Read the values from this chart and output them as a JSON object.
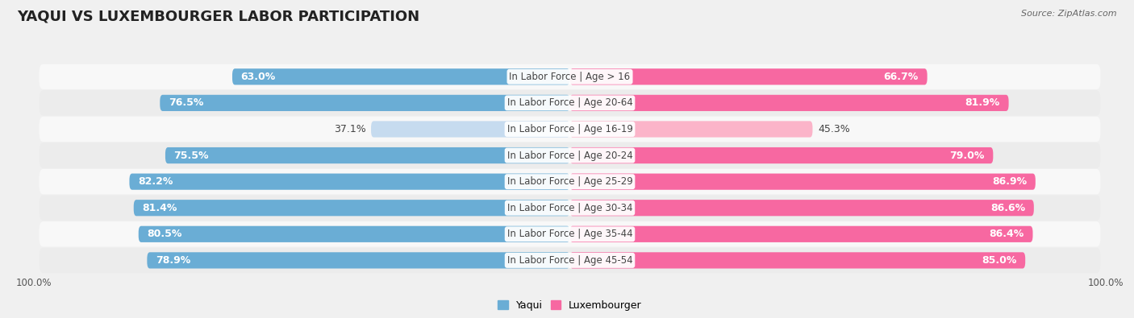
{
  "title": "YAQUI VS LUXEMBOURGER LABOR PARTICIPATION",
  "source": "Source: ZipAtlas.com",
  "categories": [
    "In Labor Force | Age > 16",
    "In Labor Force | Age 20-64",
    "In Labor Force | Age 16-19",
    "In Labor Force | Age 20-24",
    "In Labor Force | Age 25-29",
    "In Labor Force | Age 30-34",
    "In Labor Force | Age 35-44",
    "In Labor Force | Age 45-54"
  ],
  "yaqui": [
    63.0,
    76.5,
    37.1,
    75.5,
    82.2,
    81.4,
    80.5,
    78.9
  ],
  "luxembourger": [
    66.7,
    81.9,
    45.3,
    79.0,
    86.9,
    86.6,
    86.4,
    85.0
  ],
  "yaqui_color": "#6aadd5",
  "luxembourger_color": "#f768a1",
  "yaqui_color_light": "#c6dbef",
  "luxembourger_color_light": "#fbb4c9",
  "row_bg_odd": "#ececec",
  "row_bg_even": "#f8f8f8",
  "bg_color": "#f0f0f0",
  "max_val": 100.0,
  "bar_height": 0.62,
  "title_fontsize": 13,
  "label_fontsize": 9,
  "category_fontsize": 8.5,
  "legend_fontsize": 9,
  "light_indices": [
    2
  ]
}
